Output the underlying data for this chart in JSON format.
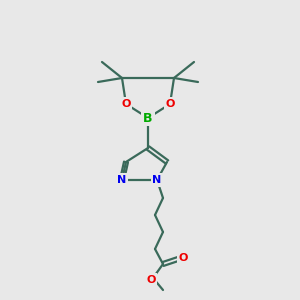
{
  "background_color": "#e8e8e8",
  "bond_color": "#3a6a5a",
  "bond_width": 1.6,
  "N_color": "#0000ee",
  "O_color": "#ee0000",
  "B_color": "#00aa00",
  "figsize": [
    3.0,
    3.0
  ],
  "dpi": 100,
  "xlim": [
    0,
    300
  ],
  "ylim": [
    0,
    300
  ]
}
